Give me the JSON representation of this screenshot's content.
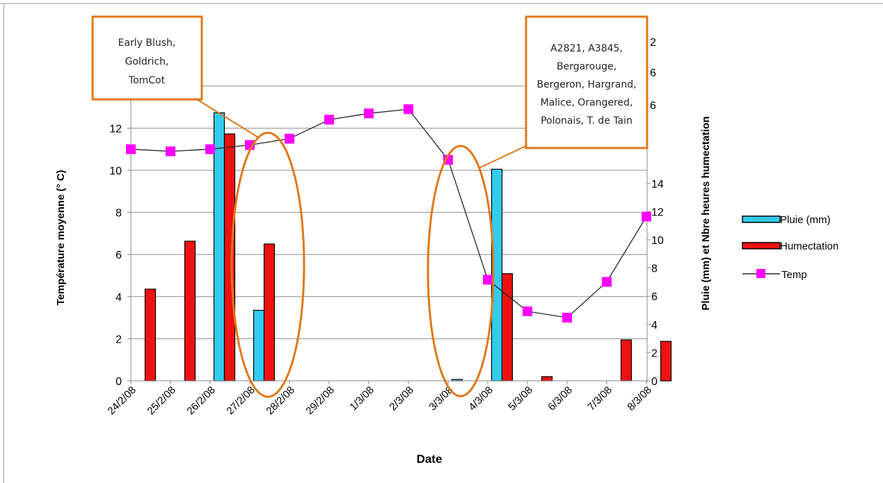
{
  "chart_data": {
    "type": "bar",
    "categories": [
      "24/2/08",
      "25/2/08",
      "26/2/08",
      "27/2/08",
      "28/2/08",
      "29/2/08",
      "1/3/08",
      "2/3/08",
      "3/3/08",
      "4/3/08",
      "5/3/08",
      "6/3/08",
      "7/3/08",
      "8/3/08"
    ],
    "series": [
      {
        "name": "Pluie (mm)",
        "kind": "bar",
        "axis": "right",
        "color": "#33CCEE",
        "values": [
          0,
          0,
          19,
          5,
          0,
          0,
          0,
          0,
          0.1,
          15,
          0,
          0,
          0,
          0
        ]
      },
      {
        "name": "Humectation",
        "kind": "bar",
        "axis": "right",
        "color": "#EE1111",
        "values": [
          6.5,
          9.9,
          17.5,
          9.7,
          0,
          0,
          0,
          0,
          0,
          7.6,
          0.3,
          0,
          2.9,
          2.8
        ]
      },
      {
        "name": "Temp",
        "kind": "line",
        "axis": "left",
        "color": "#FF00FF",
        "values": [
          11.0,
          10.9,
          11.0,
          11.2,
          11.5,
          12.4,
          12.7,
          12.9,
          10.5,
          4.8,
          3.3,
          3.0,
          4.7,
          7.8
        ]
      }
    ],
    "xlabel": "Date",
    "ylabel": "Température moyenne (° C)",
    "y2label": "Pluie (mm) et Nbre heures humectation",
    "ylim": [
      0,
      14
    ],
    "y2lim": [
      0,
      20
    ],
    "yticks": [
      "0",
      "2",
      "4",
      "6",
      "8",
      "10",
      "12"
    ],
    "y2ticks": [
      "0",
      "2",
      "4",
      "6",
      "8",
      "10",
      "12",
      "14"
    ],
    "y2ticks_partial": [
      "2",
      "6",
      "6"
    ],
    "grid": true,
    "legend_position": "right",
    "annotations": [
      {
        "text_lines": [
          "Early Blush,",
          "Goldrich,",
          "TomCot"
        ],
        "points_to": "27/2/08"
      },
      {
        "text_lines": [
          "A2821, A3845,",
          "Bergarouge,",
          "Bergeron, Hargrand,",
          "Malice, Orangered,",
          "Polonais, T. de Tain"
        ],
        "points_to": "4/3/08"
      }
    ],
    "highlight_color": "#E07818"
  }
}
